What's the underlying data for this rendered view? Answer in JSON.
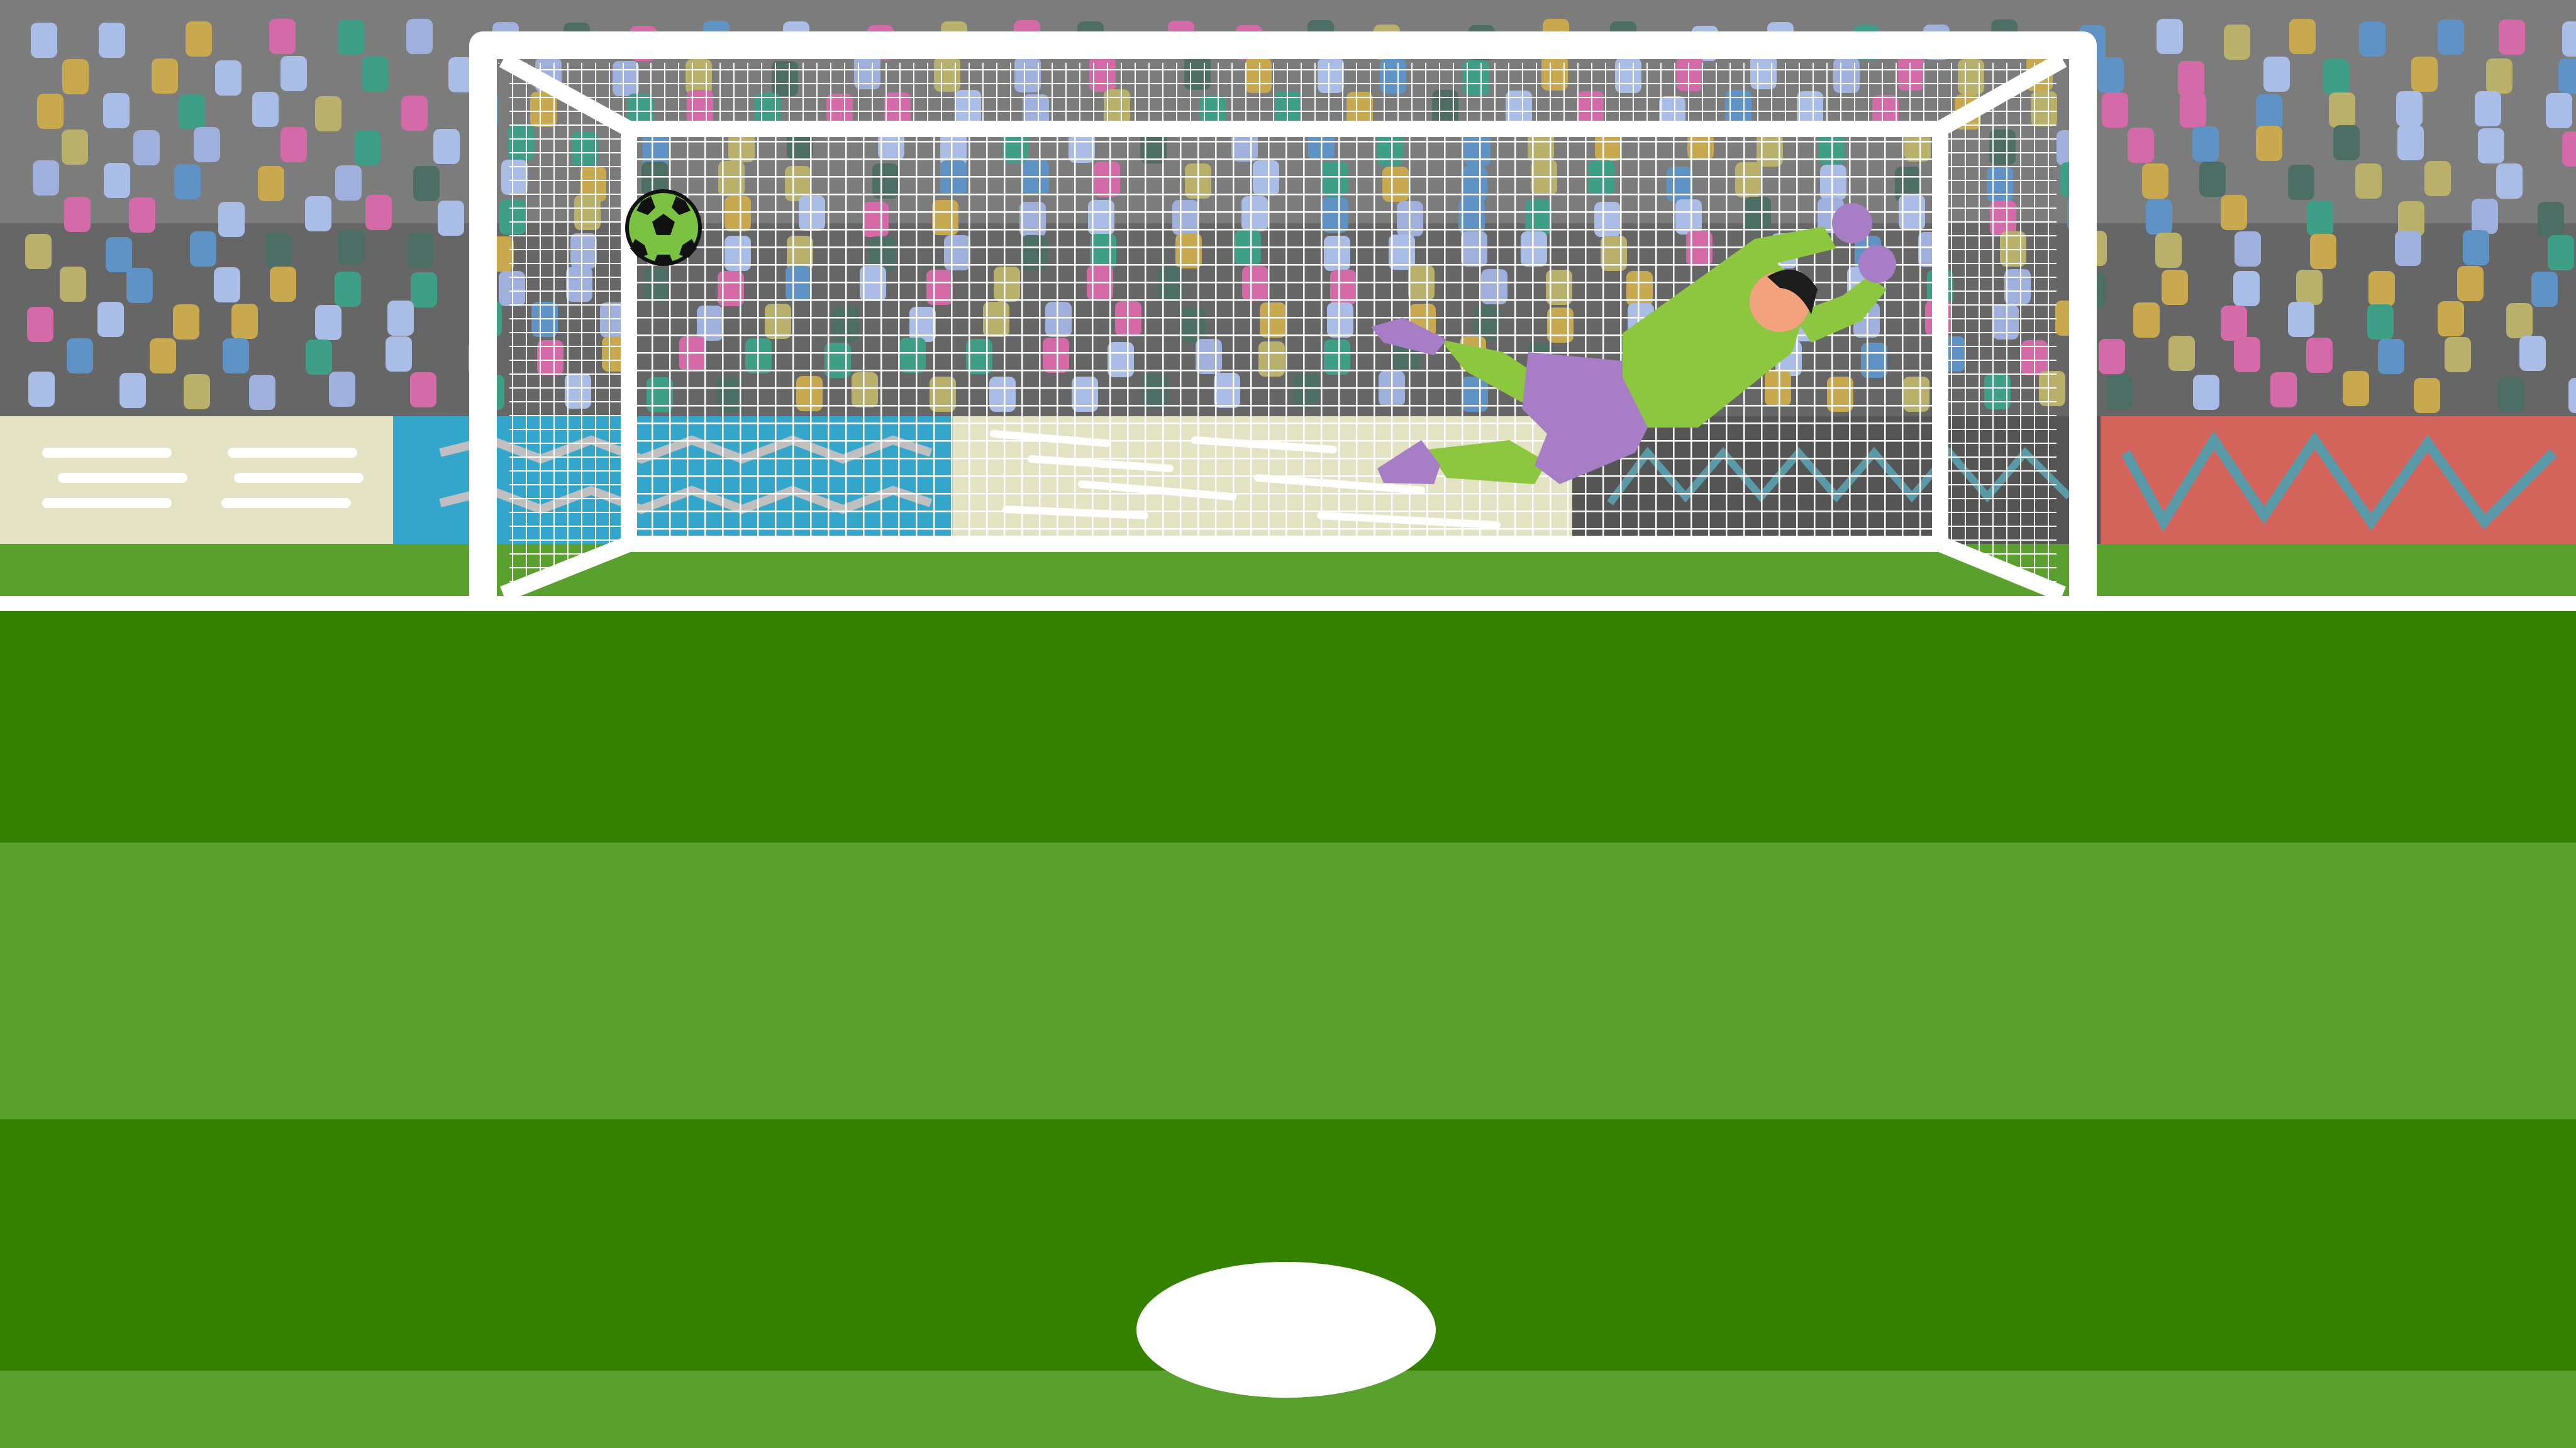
{
  "scene": {
    "type": "penalty-kick-game",
    "ui_text": []
  },
  "colors": {
    "stand_upper": "#7c7c7c",
    "stand_lower": "#666666",
    "board_cream": "#e3e3c4",
    "board_blue": "#35a6cb",
    "board_dark": "#555555",
    "board_red": "#d2645b",
    "board_zigzag": "#5a9aa8",
    "pitch_dark": "#348001",
    "pitch_light": "#5aa02e",
    "line_white": "#ffffff",
    "keeper_shirt": "#8dc63f",
    "keeper_shorts": "#a77dc6",
    "keeper_gloves": "#a77dc6",
    "keeper_hair": "#1c1c1c",
    "keeper_skin": "#f3a27e",
    "ball_main": "#7cc242",
    "ball_patch": "#111111",
    "crowd_palette": [
      "#a9bde6",
      "#5f93c6",
      "#c9a94f",
      "#d46aa8",
      "#3f9f86",
      "#4d6e64",
      "#b9b06c",
      "#9fb0dc"
    ]
  },
  "icons": {
    "ball": "soccer-ball-icon",
    "keeper": "goalkeeper-figure",
    "spot": "penalty-spot"
  }
}
